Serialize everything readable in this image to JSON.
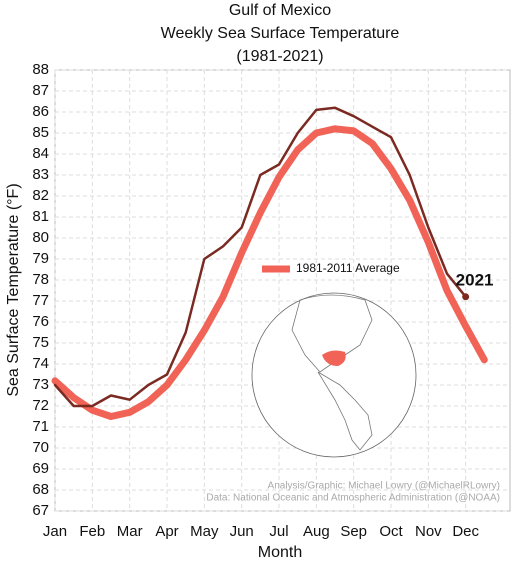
{
  "chart_data": {
    "type": "line",
    "title": "Gulf of Mexico",
    "subtitle": "Weekly Sea Surface Temperature",
    "period": "(1981-2021)",
    "x_label": "Month",
    "y_label": "Sea Surface Temperature (°F)",
    "categories": [
      "Jan",
      null,
      "Feb",
      null,
      "Mar",
      null,
      "Apr",
      null,
      "May",
      null,
      "Jun",
      null,
      "Jul",
      null,
      "Aug",
      null,
      "Sep",
      null,
      "Oct",
      null,
      "Nov",
      null,
      "Dec",
      null
    ],
    "series": [
      {
        "name": "1981-2011 Average",
        "color": "#f06356",
        "width": 7,
        "values": [
          73.2,
          72.4,
          71.8,
          71.5,
          71.7,
          72.2,
          73.0,
          74.2,
          75.6,
          77.2,
          79.3,
          81.2,
          82.9,
          84.2,
          85.0,
          85.2,
          85.1,
          84.5,
          83.3,
          81.8,
          79.8,
          77.5,
          75.8,
          74.2
        ]
      },
      {
        "name": "2021",
        "color": "#7b2a22",
        "width": 2.5,
        "values": [
          73.0,
          72.0,
          72.0,
          72.5,
          72.3,
          73.0,
          73.5,
          75.5,
          79.0,
          79.6,
          80.5,
          83.0,
          83.5,
          85.0,
          86.1,
          86.2,
          85.8,
          85.3,
          84.8,
          83.0,
          80.5,
          78.3,
          77.2,
          null
        ]
      }
    ],
    "ylim": [
      67,
      88
    ],
    "yticks": [
      67,
      68,
      69,
      70,
      71,
      72,
      73,
      74,
      75,
      76,
      77,
      78,
      79,
      80,
      81,
      82,
      83,
      84,
      85,
      86,
      87,
      88
    ],
    "grid": true,
    "credits": [
      "Analysis/Graphic: Michael Lowry (@MichaelRLowry)",
      "Data: National Oceanic and Atmospheric Administration (@NOAA)"
    ]
  }
}
